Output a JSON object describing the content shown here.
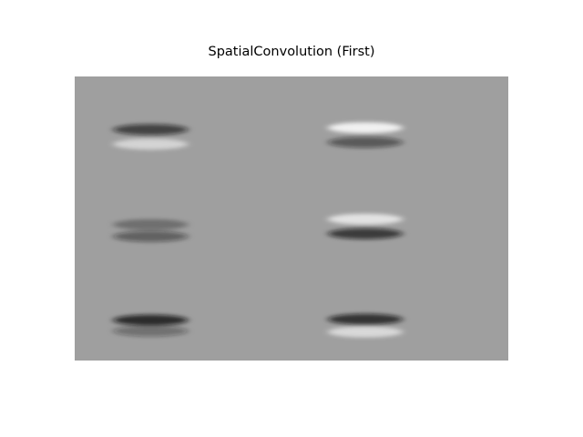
{
  "chart_data": {
    "type": "heatmap",
    "title": "SpatialConvolution (First)",
    "xlabel": "",
    "ylabel": "",
    "axes_visible": false,
    "colormap": "gray",
    "background_color": "#9f9f9f",
    "grid": "2x3",
    "kernels": [
      {
        "row": 0,
        "col": 0,
        "bands": [
          {
            "dy": -0.35,
            "sign": -1,
            "strength": 0.65
          },
          {
            "dy": 0.45,
            "sign": 1,
            "strength": 0.55
          }
        ]
      },
      {
        "row": 0,
        "col": 1,
        "bands": [
          {
            "dy": -0.45,
            "sign": 1,
            "strength": 0.85
          },
          {
            "dy": 0.35,
            "sign": -1,
            "strength": 0.5
          }
        ]
      },
      {
        "row": 1,
        "col": 0,
        "bands": [
          {
            "dy": -0.2,
            "sign": -1,
            "strength": 0.3
          },
          {
            "dy": 0.45,
            "sign": -1,
            "strength": 0.45
          }
        ]
      },
      {
        "row": 1,
        "col": 1,
        "bands": [
          {
            "dy": -0.5,
            "sign": 1,
            "strength": 0.7
          },
          {
            "dy": 0.3,
            "sign": -1,
            "strength": 0.7
          }
        ]
      },
      {
        "row": 2,
        "col": 0,
        "bands": [
          {
            "dy": -0.1,
            "sign": -1,
            "strength": 0.8
          },
          {
            "dy": 0.5,
            "sign": -1,
            "strength": 0.35
          }
        ]
      },
      {
        "row": 2,
        "col": 1,
        "bands": [
          {
            "dy": -0.15,
            "sign": -1,
            "strength": 0.75
          },
          {
            "dy": 0.55,
            "sign": 1,
            "strength": 0.6
          }
        ]
      }
    ]
  }
}
